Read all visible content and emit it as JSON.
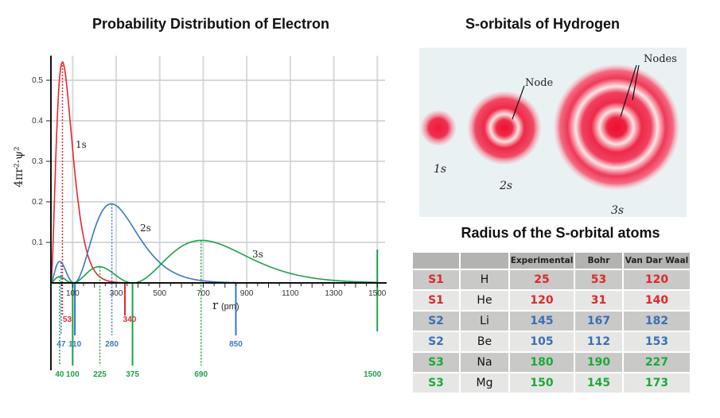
{
  "left_title": "Probability Distribution of Electron",
  "right_title": "S-orbitals of Hydrogen",
  "table_title": "Radius of the S-orbital atoms",
  "chart_data": {
    "type": "line",
    "title": "Probability Distribution of Electron",
    "xlabel": "r",
    "xlabel_unit": "(pm)",
    "ylabel": "4πr²·ψ²",
    "xlim": [
      0,
      1500
    ],
    "ylim": [
      0,
      0.55
    ],
    "xticks": [
      100,
      300,
      500,
      700,
      900,
      1100,
      1300,
      1500
    ],
    "yticks": [
      0.1,
      0.2,
      0.3,
      0.4,
      0.5
    ],
    "grid": true,
    "series": [
      {
        "name": "1s",
        "color": "#e8262b",
        "peak_r": 53,
        "peak": 0.545,
        "nodes": []
      },
      {
        "name": "2s",
        "color": "#3a78c0",
        "peak_r": 280,
        "peak": 0.195,
        "minor_peak_r": 47,
        "nodes": [
          110
        ]
      },
      {
        "name": "3s",
        "color": "#1ea04a",
        "peak_r": 690,
        "peak": 0.105,
        "minor_peaks_r": [
          40,
          225
        ],
        "nodes": [
          100,
          375
        ]
      }
    ],
    "markers": [
      {
        "value": 53,
        "color": "#e8262b",
        "style": "dotted",
        "row": 0,
        "series": 0
      },
      {
        "value": 340,
        "color": "#e8262b",
        "style": "solid",
        "row": 0
      },
      {
        "value": 47,
        "color": "#3a78c0",
        "style": "dotted",
        "row": 1,
        "series": 1
      },
      {
        "value": 110,
        "color": "#3a78c0",
        "style": "solid",
        "row": 1
      },
      {
        "value": 280,
        "color": "#3a78c0",
        "style": "dotted",
        "row": 1,
        "series": 1
      },
      {
        "value": 850,
        "color": "#3a78c0",
        "style": "solid",
        "row": 1
      },
      {
        "value": 40,
        "color": "#1ea04a",
        "style": "dotted",
        "row": 2,
        "series": 2
      },
      {
        "value": 100,
        "color": "#1ea04a",
        "style": "solid",
        "row": 2
      },
      {
        "value": 225,
        "color": "#1ea04a",
        "style": "dotted",
        "row": 2,
        "series": 2
      },
      {
        "value": 375,
        "color": "#1ea04a",
        "style": "solid",
        "row": 2
      },
      {
        "value": 690,
        "color": "#1ea04a",
        "style": "dotted",
        "row": 2,
        "series": 2
      },
      {
        "value": 1500,
        "color": "#1ea04a",
        "style": "solid",
        "row": 2
      }
    ]
  },
  "orbitals": {
    "labels": [
      "1s",
      "2s",
      "3s"
    ],
    "node_label": "Node",
    "nodes_label": "Nodes"
  },
  "table": {
    "headers": [
      "",
      "",
      "Experimental",
      "Bohr",
      "Van Dar Waal"
    ],
    "rows": [
      {
        "shell": "S1",
        "element": "H",
        "experimental": "25",
        "bohr": "53",
        "vdw": "120",
        "color": "#e0262b"
      },
      {
        "shell": "S1",
        "element": "He",
        "experimental": "120",
        "bohr": "31",
        "vdw": "140",
        "color": "#e0262b"
      },
      {
        "shell": "S2",
        "element": "Li",
        "experimental": "145",
        "bohr": "167",
        "vdw": "182",
        "color": "#3a6fb5"
      },
      {
        "shell": "S2",
        "element": "Be",
        "experimental": "105",
        "bohr": "112",
        "vdw": "153",
        "color": "#3a6fb5"
      },
      {
        "shell": "S3",
        "element": "Na",
        "experimental": "180",
        "bohr": "190",
        "vdw": "227",
        "color": "#1ea83a"
      },
      {
        "shell": "S3",
        "element": "Mg",
        "experimental": "150",
        "bohr": "145",
        "vdw": "173",
        "color": "#1ea83a"
      }
    ]
  }
}
